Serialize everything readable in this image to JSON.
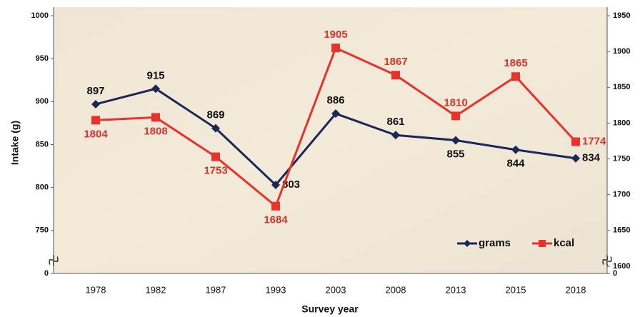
{
  "chart_data": {
    "type": "line",
    "x_label": "Survey year",
    "y_label": "Intake (g)",
    "categories": [
      "1978",
      "1982",
      "1987",
      "1993",
      "2003",
      "2008",
      "2013",
      "2015",
      "2018"
    ],
    "series": [
      {
        "name": "grams",
        "color": "#1c2657",
        "marker": "diamond",
        "values": [
          897,
          915,
          869,
          803,
          886,
          861,
          855,
          844,
          834
        ]
      },
      {
        "name": "kcal",
        "color": "#e8322b",
        "marker": "square",
        "axis": "y2",
        "values": [
          1804,
          1808,
          1753,
          1684,
          1905,
          1867,
          1810,
          1865,
          1774
        ]
      }
    ],
    "ylim": [
      700,
      1000
    ],
    "yticks": [
      750,
      800,
      850,
      900,
      950,
      1000
    ],
    "ybreak_tick": 0,
    "y2lim": [
      1590,
      1950
    ],
    "y2ticks": [
      1600,
      1650,
      1700,
      1750,
      1800,
      1850,
      1900,
      1950
    ],
    "y2break_tick": 0,
    "legend": "lower right",
    "grid": false
  }
}
